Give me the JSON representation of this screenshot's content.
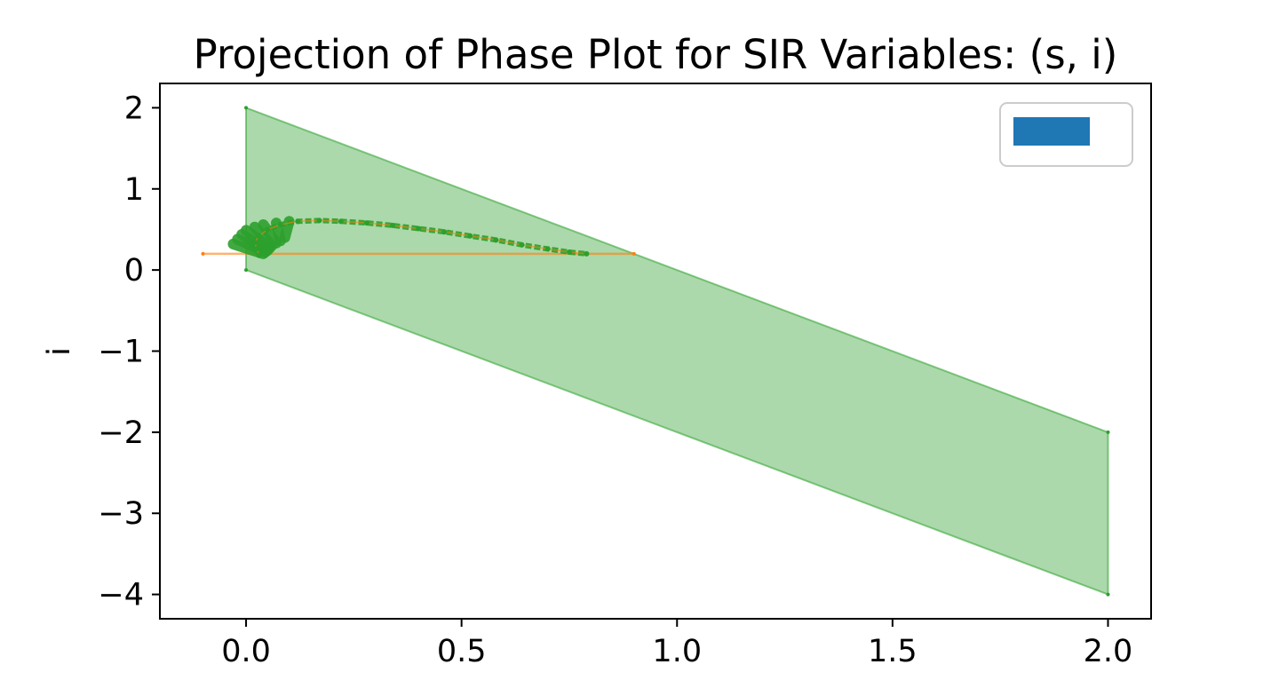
{
  "chart_data": {
    "type": "area",
    "title": "Projection of Phase Plot for SIR Variables: (s, i)",
    "xlabel": "s",
    "ylabel": "i",
    "xlim": [
      -0.2,
      2.1
    ],
    "ylim": [
      -4.3,
      2.3
    ],
    "xticks": [
      0.0,
      0.5,
      1.0,
      1.5,
      2.0
    ],
    "xtick_labels": [
      "0.0",
      "0.5",
      "1.0",
      "1.5",
      "2.0"
    ],
    "yticks": [
      2,
      1,
      0,
      -1,
      -2,
      -3,
      -4
    ],
    "ytick_labels": [
      "2",
      "1",
      "0",
      "−1",
      "−2",
      "−3",
      "−4"
    ],
    "grid": false,
    "legend": {
      "position": "top-right",
      "entries": [
        {
          "name": "",
          "color": "#1f77b4"
        }
      ]
    },
    "colors": {
      "region": "#2ca02c",
      "segment": "#ff7f0e",
      "legend_patch": "#1f77b4"
    },
    "region_polygon": [
      [
        0.0,
        2.0
      ],
      [
        2.0,
        -2.0
      ],
      [
        2.0,
        -4.0
      ],
      [
        0.0,
        0.0
      ]
    ],
    "segment": [
      [
        -0.1,
        0.2
      ],
      [
        0.9,
        0.2
      ]
    ],
    "trajectory_points": [
      [
        0.03,
        0.18
      ],
      [
        0.025,
        0.26
      ],
      [
        0.02,
        0.34
      ],
      [
        0.03,
        0.42
      ],
      [
        0.05,
        0.5
      ],
      [
        0.08,
        0.56
      ],
      [
        0.12,
        0.6
      ],
      [
        0.17,
        0.61
      ],
      [
        0.22,
        0.6
      ],
      [
        0.28,
        0.58
      ],
      [
        0.34,
        0.55
      ],
      [
        0.4,
        0.51
      ],
      [
        0.46,
        0.47
      ],
      [
        0.52,
        0.42
      ],
      [
        0.58,
        0.37
      ],
      [
        0.64,
        0.31
      ],
      [
        0.7,
        0.26
      ],
      [
        0.75,
        0.22
      ],
      [
        0.79,
        0.2
      ]
    ],
    "fan_segments": [
      [
        [
          0.04,
          0.2
        ],
        [
          -0.03,
          0.32
        ]
      ],
      [
        [
          0.045,
          0.22
        ],
        [
          -0.02,
          0.38
        ]
      ],
      [
        [
          0.05,
          0.24
        ],
        [
          -0.01,
          0.44
        ]
      ],
      [
        [
          0.055,
          0.27
        ],
        [
          0.0,
          0.49
        ]
      ],
      [
        [
          0.06,
          0.3
        ],
        [
          0.02,
          0.53
        ]
      ],
      [
        [
          0.07,
          0.33
        ],
        [
          0.04,
          0.56
        ]
      ],
      [
        [
          0.08,
          0.36
        ],
        [
          0.07,
          0.58
        ]
      ],
      [
        [
          0.09,
          0.4
        ],
        [
          0.1,
          0.6
        ]
      ]
    ]
  }
}
